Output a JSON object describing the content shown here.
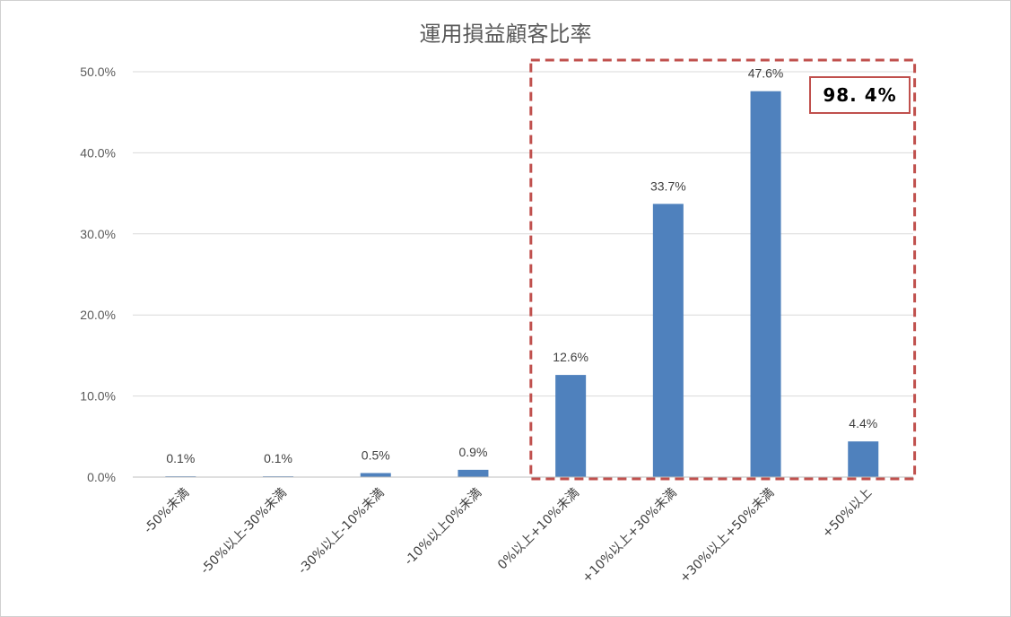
{
  "chart_data": {
    "type": "bar",
    "title": "運用損益顧客比率",
    "categories": [
      "-50%未満",
      "-50%以上-30%未満",
      "-30%以上-10%未満",
      "-10%以上0%未満",
      "0%以上+10%未満",
      "+10%以上+30%未満",
      "+30%以上+50%未満",
      "+50%以上"
    ],
    "values": [
      0.1,
      0.1,
      0.5,
      0.9,
      12.6,
      33.7,
      47.6,
      4.4
    ],
    "data_labels": [
      "0.1%",
      "0.1%",
      "0.5%",
      "0.9%",
      "12.6%",
      "33.7%",
      "47.6%",
      "4.4%"
    ],
    "yticks": [
      "0.0%",
      "10.0%",
      "20.0%",
      "30.0%",
      "40.0%",
      "50.0%"
    ],
    "ylim": [
      0,
      50
    ],
    "grid": true,
    "bar_color": "#4f81bd",
    "highlight": {
      "from_category": "0%以上+10%未満",
      "to_category": "+50%以上",
      "label": "98. 4%",
      "color": "#c0504d",
      "style": "dashed"
    }
  }
}
